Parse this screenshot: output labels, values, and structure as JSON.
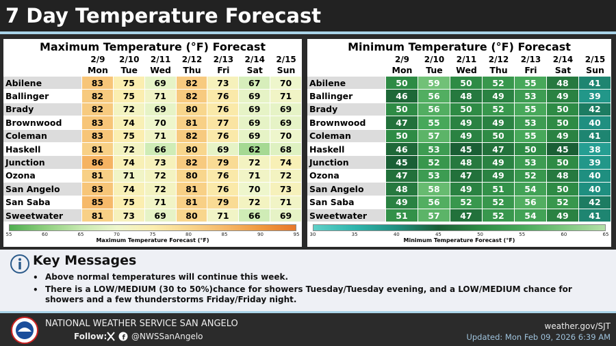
{
  "header": {
    "title": "7 Day Temperature Forecast"
  },
  "tables": [
    {
      "title": "Maximum Temperature (°F) Forecast",
      "dates": [
        "2/9",
        "2/10",
        "2/11",
        "2/12",
        "2/13",
        "2/14",
        "2/15"
      ],
      "days": [
        "Mon",
        "Tue",
        "Wed",
        "Thu",
        "Fri",
        "Sat",
        "Sun"
      ],
      "rows": [
        {
          "city": "Abilene",
          "values": [
            83,
            75,
            69,
            82,
            73,
            67,
            70
          ]
        },
        {
          "city": "Ballinger",
          "values": [
            82,
            75,
            71,
            82,
            76,
            69,
            71
          ]
        },
        {
          "city": "Brady",
          "values": [
            82,
            72,
            69,
            80,
            76,
            69,
            69
          ]
        },
        {
          "city": "Brownwood",
          "values": [
            83,
            74,
            70,
            81,
            77,
            69,
            69
          ]
        },
        {
          "city": "Coleman",
          "values": [
            83,
            75,
            71,
            82,
            76,
            69,
            70
          ]
        },
        {
          "city": "Haskell",
          "values": [
            81,
            72,
            66,
            80,
            69,
            62,
            68
          ]
        },
        {
          "city": "Junction",
          "values": [
            86,
            74,
            73,
            82,
            79,
            72,
            74
          ]
        },
        {
          "city": "Ozona",
          "values": [
            81,
            71,
            72,
            80,
            76,
            71,
            72
          ]
        },
        {
          "city": "San Angelo",
          "values": [
            83,
            74,
            72,
            81,
            76,
            70,
            73
          ]
        },
        {
          "city": "San Saba",
          "values": [
            85,
            75,
            71,
            81,
            79,
            72,
            71
          ]
        },
        {
          "city": "Sweetwater",
          "values": [
            81,
            73,
            69,
            80,
            71,
            66,
            69
          ]
        }
      ],
      "colorbar": {
        "ticks": [
          55,
          60,
          65,
          70,
          75,
          80,
          85,
          90,
          95
        ],
        "colors": [
          "#4fae4f",
          "#8fcf7f",
          "#c7e9b0",
          "#eef6cc",
          "#fbeeb0",
          "#f8d68d",
          "#f6b96a",
          "#f09a40",
          "#e8782a"
        ],
        "label": "Maximum Temperature Forecast (°F)"
      }
    },
    {
      "title": "Minimum Temperature (°F) Forecast",
      "dates": [
        "2/9",
        "2/10",
        "2/11",
        "2/12",
        "2/13",
        "2/14",
        "2/15"
      ],
      "days": [
        "Mon",
        "Tue",
        "Wed",
        "Thu",
        "Fri",
        "Sat",
        "Sun"
      ],
      "rows": [
        {
          "city": "Abilene",
          "values": [
            50,
            59,
            50,
            52,
            55,
            48,
            41
          ]
        },
        {
          "city": "Ballinger",
          "values": [
            46,
            56,
            48,
            49,
            53,
            49,
            39
          ]
        },
        {
          "city": "Brady",
          "values": [
            50,
            56,
            50,
            52,
            55,
            50,
            42
          ]
        },
        {
          "city": "Brownwood",
          "values": [
            47,
            55,
            49,
            49,
            53,
            50,
            40
          ]
        },
        {
          "city": "Coleman",
          "values": [
            50,
            57,
            49,
            50,
            55,
            49,
            41
          ]
        },
        {
          "city": "Haskell",
          "values": [
            46,
            53,
            45,
            47,
            50,
            45,
            38
          ]
        },
        {
          "city": "Junction",
          "values": [
            45,
            52,
            48,
            49,
            53,
            50,
            39
          ]
        },
        {
          "city": "Ozona",
          "values": [
            47,
            53,
            47,
            49,
            52,
            48,
            40
          ]
        },
        {
          "city": "San Angelo",
          "values": [
            48,
            58,
            49,
            51,
            54,
            50,
            40
          ]
        },
        {
          "city": "San Saba",
          "values": [
            49,
            56,
            52,
            52,
            56,
            52,
            42
          ]
        },
        {
          "city": "Sweetwater",
          "values": [
            51,
            57,
            47,
            52,
            54,
            49,
            41
          ]
        }
      ],
      "colorbar": {
        "ticks": [
          30,
          35,
          40,
          45,
          50,
          55,
          60,
          65
        ],
        "colors": [
          "#5fd0c8",
          "#2fb5ad",
          "#1f8f80",
          "#1a5f35",
          "#2e8b45",
          "#47a85a",
          "#7cc77e",
          "#b5e0a8"
        ],
        "label": "Minimum Temperature Forecast (°F)"
      }
    }
  ],
  "key_messages": {
    "title": "Key Messages",
    "items": [
      "Above normal temperatures will continue this week.",
      "There is a LOW/MEDIUM (30 to 50%)chance for showers Tuesday/Tuesday evening, and a LOW/MEDIUM chance for showers and a few thunderstorms Friday/Friday night."
    ]
  },
  "footer": {
    "office": "NATIONAL WEATHER SERVICE SAN ANGELO",
    "follow": "Follow:",
    "handle": "@NWSSanAngelo",
    "website": "weather.gov/SJT",
    "updated": "Updated: Mon Feb 09, 2026 6:39 AM"
  }
}
